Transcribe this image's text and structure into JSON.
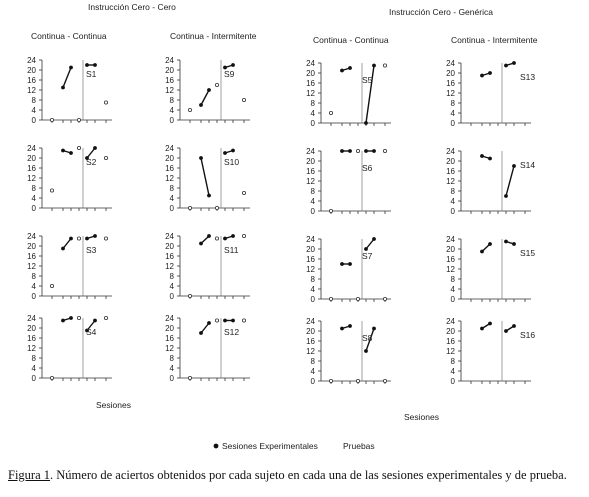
{
  "headers": {
    "left": "Instrucción Cero - Cero",
    "right": "Instrucción Cero - Genérica",
    "col1": "Continua - Continua",
    "col2": "Continua - Intermitente",
    "col3": "Continua - Continua",
    "col4": "Continua - Intermitente"
  },
  "axis_labels": {
    "sesiones": "Sesiones"
  },
  "legend": {
    "experimental": "Sesiones Experimentales",
    "prueba": "Pruebas"
  },
  "caption": {
    "fig": "Figura 1",
    "text": ". Número de aciertos obtenidos por cada sujeto en cada una de las sesiones experimentales y de prueba."
  },
  "chart_data": [
    {
      "type": "line",
      "title": "S1",
      "ylim": [
        0,
        24
      ],
      "yticks": [
        0,
        4,
        8,
        12,
        16,
        20,
        24
      ],
      "pre_test": 0,
      "pre": [
        13,
        21
      ],
      "mid_test": 0,
      "post": [
        22,
        22
      ],
      "post_test": 7
    },
    {
      "type": "line",
      "title": "S9",
      "ylim": [
        0,
        24
      ],
      "yticks": [
        0,
        4,
        8,
        12,
        16,
        20,
        24
      ],
      "pre_test": 4,
      "pre": [
        6,
        12
      ],
      "mid_test": 14,
      "post": [
        21,
        22
      ],
      "post_test": 8
    },
    {
      "type": "line",
      "title": "S5",
      "ylim": [
        0,
        24
      ],
      "yticks": [
        0,
        4,
        8,
        12,
        16,
        20,
        24
      ],
      "pre_test": 4,
      "pre": [
        21,
        22
      ],
      "mid_test": null,
      "post": [
        0,
        23
      ],
      "post_test": 23
    },
    {
      "type": "line",
      "title": "S13",
      "ylim": [
        0,
        24
      ],
      "yticks": [
        0,
        4,
        8,
        12,
        16,
        20,
        24
      ],
      "pre_test": null,
      "pre": [
        19,
        20
      ],
      "mid_test": null,
      "post": [
        23,
        24
      ],
      "post_test": null
    },
    {
      "type": "line",
      "title": "S2",
      "ylim": [
        0,
        24
      ],
      "yticks": [
        0,
        4,
        8,
        12,
        16,
        20,
        24
      ],
      "pre_test": 7,
      "pre": [
        23,
        22
      ],
      "mid_test": 24,
      "post": [
        20,
        24
      ],
      "post_test": 20
    },
    {
      "type": "line",
      "title": "S10",
      "ylim": [
        0,
        24
      ],
      "yticks": [
        0,
        4,
        8,
        12,
        16,
        20,
        24
      ],
      "pre_test": 0,
      "pre": [
        20,
        5
      ],
      "mid_test": 0,
      "post": [
        22,
        23
      ],
      "post_test": 6
    },
    {
      "type": "line",
      "title": "S6",
      "ylim": [
        0,
        24
      ],
      "yticks": [
        0,
        4,
        8,
        12,
        16,
        20,
        24
      ],
      "pre_test": 0,
      "pre": [
        24,
        24
      ],
      "mid_test": 24,
      "post": [
        24,
        24
      ],
      "post_test": 24
    },
    {
      "type": "line",
      "title": "S14",
      "ylim": [
        0,
        24
      ],
      "yticks": [
        0,
        4,
        8,
        12,
        16,
        20,
        24
      ],
      "pre_test": null,
      "pre": [
        22,
        21
      ],
      "mid_test": null,
      "post": [
        6,
        18
      ],
      "post_test": null
    },
    {
      "type": "line",
      "title": "S3",
      "ylim": [
        0,
        24
      ],
      "yticks": [
        0,
        4,
        8,
        12,
        16,
        20,
        24
      ],
      "pre_test": 4,
      "pre": [
        19,
        23
      ],
      "mid_test": 23,
      "post": [
        23,
        24
      ],
      "post_test": 23
    },
    {
      "type": "line",
      "title": "S11",
      "ylim": [
        0,
        24
      ],
      "yticks": [
        0,
        4,
        8,
        12,
        16,
        20,
        24
      ],
      "pre_test": 0,
      "pre": [
        21,
        24
      ],
      "mid_test": 23,
      "post": [
        23,
        24
      ],
      "post_test": 24
    },
    {
      "type": "line",
      "title": "S7",
      "ylim": [
        0,
        24
      ],
      "yticks": [
        0,
        4,
        8,
        12,
        16,
        20,
        24
      ],
      "pre_test": 0,
      "pre": [
        14,
        14
      ],
      "mid_test": 0,
      "post": [
        20,
        24
      ],
      "post_test": 0
    },
    {
      "type": "line",
      "title": "S15",
      "ylim": [
        0,
        24
      ],
      "yticks": [
        0,
        4,
        8,
        12,
        16,
        20,
        24
      ],
      "pre_test": null,
      "pre": [
        19,
        22
      ],
      "mid_test": null,
      "post": [
        23,
        22
      ],
      "post_test": null
    },
    {
      "type": "line",
      "title": "S4",
      "ylim": [
        0,
        24
      ],
      "yticks": [
        0,
        4,
        8,
        12,
        16,
        20,
        24
      ],
      "pre_test": 0,
      "pre": [
        23,
        24
      ],
      "mid_test": 24,
      "post": [
        19,
        23
      ],
      "post_test": 24
    },
    {
      "type": "line",
      "title": "S12",
      "ylim": [
        0,
        24
      ],
      "yticks": [
        0,
        4,
        8,
        12,
        16,
        20,
        24
      ],
      "pre_test": 0,
      "pre": [
        18,
        22
      ],
      "mid_test": 23,
      "post": [
        23,
        23
      ],
      "post_test": 23
    },
    {
      "type": "line",
      "title": "S8",
      "ylim": [
        0,
        24
      ],
      "yticks": [
        0,
        4,
        8,
        12,
        16,
        20,
        24
      ],
      "pre_test": 0,
      "pre": [
        21,
        22
      ],
      "mid_test": 0,
      "post": [
        12,
        21
      ],
      "post_test": 0
    },
    {
      "type": "line",
      "title": "S16",
      "ylim": [
        0,
        24
      ],
      "yticks": [
        0,
        4,
        8,
        12,
        16,
        20,
        24
      ],
      "pre_test": null,
      "pre": [
        21,
        23
      ],
      "mid_test": null,
      "post": [
        20,
        22
      ],
      "post_test": null
    }
  ]
}
